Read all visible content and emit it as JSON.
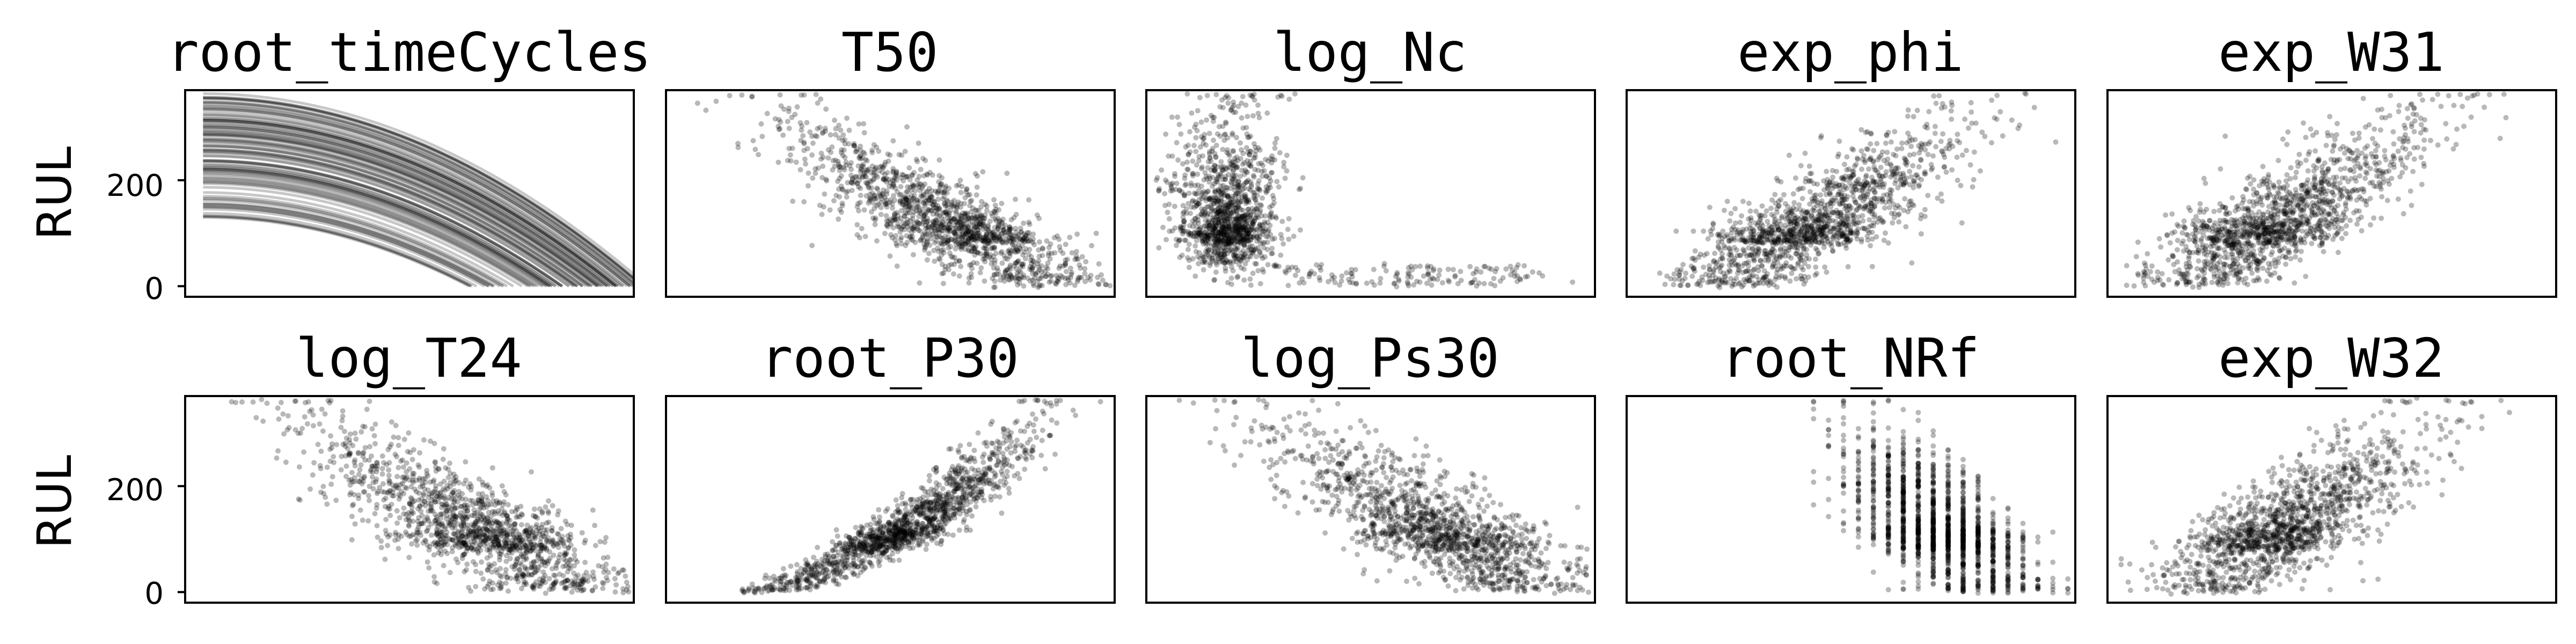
{
  "chart_data": [
    {
      "type": "line",
      "title": "root_timeCycles",
      "ylabel": "RUL",
      "yticks": [
        "200",
        "0"
      ],
      "ylim": [
        -20,
        370
      ],
      "xlim": [
        0,
        1
      ],
      "xticks": [],
      "color": "#000000",
      "series": [
        {
          "values": "many engine run-to-failure curves; RUL decreasing from ~130–365 to 0, concave down"
        }
      ]
    },
    {
      "type": "scatter",
      "title": "T50",
      "ylim": [
        -20,
        370
      ],
      "xticks": [],
      "yticks": [],
      "color": "#000000"
    },
    {
      "type": "scatter",
      "title": "log_Nc",
      "ylim": [
        -20,
        370
      ],
      "xticks": [],
      "yticks": [],
      "color": "#000000"
    },
    {
      "type": "scatter",
      "title": "exp_phi",
      "ylim": [
        -20,
        370
      ],
      "xticks": [],
      "yticks": [],
      "color": "#000000"
    },
    {
      "type": "scatter",
      "title": "exp_W31",
      "ylim": [
        -20,
        370
      ],
      "xticks": [],
      "yticks": [],
      "color": "#000000"
    },
    {
      "type": "scatter",
      "title": "log_T24",
      "ylabel": "RUL",
      "yticks": [
        "200",
        "0"
      ],
      "ylim": [
        -20,
        370
      ],
      "xticks": [],
      "color": "#000000"
    },
    {
      "type": "scatter",
      "title": "root_P30",
      "ylim": [
        -20,
        370
      ],
      "xticks": [],
      "yticks": [],
      "color": "#000000"
    },
    {
      "type": "scatter",
      "title": "log_Ps30",
      "ylim": [
        -20,
        370
      ],
      "xticks": [],
      "yticks": [],
      "color": "#000000"
    },
    {
      "type": "scatter",
      "title": "root_NRf",
      "ylim": [
        -20,
        370
      ],
      "xticks": [],
      "yticks": [],
      "color": "#000000"
    },
    {
      "type": "scatter",
      "title": "exp_W32",
      "ylim": [
        -20,
        370
      ],
      "xticks": [],
      "yticks": [],
      "color": "#000000"
    }
  ]
}
